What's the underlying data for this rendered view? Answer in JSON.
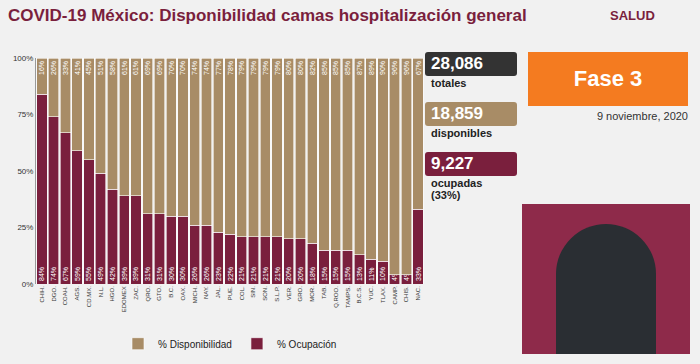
{
  "chart_data": {
    "type": "bar",
    "stacked": true,
    "data_labels": true,
    "grid": false,
    "legend": "bottom",
    "title": "COVID-19 México: Disponibilidad camas hospitalización general",
    "categories": [
      "CHIH.",
      "DGO.",
      "COAH.",
      "AGS.",
      "CD.MX.",
      "N.L.",
      "HGO.",
      "EDOMEX",
      "ZAC.",
      "QRO.",
      "GTO.",
      "B.C.",
      "OAX.",
      "MICH.",
      "NAY.",
      "JAL.",
      "PUE.",
      "COL.",
      "SIN.",
      "SON.",
      "S.L.P.",
      "VER.",
      "GRO.",
      "MOR.",
      "TAB.",
      "Q.ROO.",
      "TAMPS.",
      "B.C.S.",
      "YUC.",
      "TLAX.",
      "CAMP.",
      "CHIS.",
      "NAC."
    ],
    "series": [
      {
        "name": "% Ocupación",
        "color": "#7a1f3d",
        "values": [
          84,
          74,
          67,
          59,
          55,
          49,
          42,
          39,
          39,
          31,
          31,
          30,
          30,
          26,
          26,
          23,
          22,
          21,
          21,
          21,
          21,
          20,
          20,
          18,
          15,
          15,
          15,
          13,
          11,
          10,
          4,
          4,
          33
        ],
        "value_labels": [
          "84%",
          "74%",
          "67%",
          "59%",
          "55%",
          "49%",
          "42%",
          "39%",
          "39%",
          "31%",
          "31%",
          "30%",
          "30%",
          "26%",
          "26%",
          "23%",
          "22%",
          "21%",
          "21%",
          "21%",
          "21%",
          "20%",
          "20%",
          "18%",
          "15%",
          "15%",
          "15%",
          "13%",
          "11%",
          "10%",
          "4%",
          "4%",
          "33%"
        ]
      },
      {
        "name": "% Disponibilidad",
        "color": "#a88c66",
        "values": [
          16,
          26,
          33,
          41,
          45,
          51,
          58,
          61,
          61,
          69,
          69,
          70,
          70,
          74,
          74,
          77,
          78,
          79,
          79,
          79,
          79,
          80,
          80,
          82,
          85,
          85,
          85,
          87,
          89,
          90,
          96,
          96,
          67
        ],
        "value_labels": [
          "16%",
          "26%",
          "33%",
          "41%",
          "45%",
          "51%",
          "58%",
          "61%",
          "61%",
          "69%",
          "69%",
          "70%",
          "70%",
          "74%",
          "74%",
          "77%",
          "78%",
          "79%",
          "79%",
          "79%",
          "79%",
          "80%",
          "80%",
          "82%",
          "85%",
          "85%",
          "85%",
          "87%",
          "89%",
          "90%",
          "96%",
          "96%",
          "67%"
        ]
      }
    ],
    "ylim": [
      0,
      100
    ],
    "yticks": [
      {
        "value": 0,
        "label": "0%"
      },
      {
        "value": 25,
        "label": "25%"
      },
      {
        "value": 50,
        "label": "50%"
      },
      {
        "value": 75,
        "label": "75%"
      },
      {
        "value": 100,
        "label": "100%"
      }
    ]
  },
  "header": {
    "logo": "SALUD",
    "phase": "Fase 3",
    "date": "9 noviembre, 2020"
  },
  "stats": [
    {
      "value": "28,086",
      "label": "totales",
      "color": "#333333"
    },
    {
      "value": "18,859",
      "label": "disponibles",
      "color": "#a88c66"
    },
    {
      "value": "9,227",
      "label": "ocupadas (33%)",
      "color": "#7a1f3d"
    }
  ]
}
